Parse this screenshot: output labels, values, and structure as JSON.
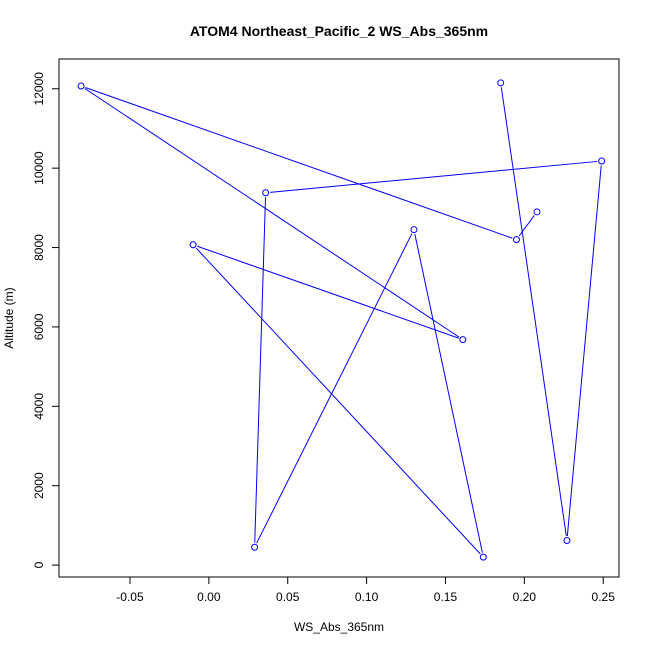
{
  "chart_data": {
    "type": "line",
    "title": "ATOM4 Northeast_Pacific_2 WS_Abs_365nm",
    "xlabel": "WS_Abs_365nm",
    "ylabel": "Altitude (m)",
    "xlim": [
      -0.095,
      0.26
    ],
    "ylim": [
      -300,
      12750
    ],
    "xticks": [
      -0.05,
      0.0,
      0.05,
      0.1,
      0.15,
      0.2,
      0.25
    ],
    "xtick_labels": [
      "-0.05",
      "0.00",
      "0.05",
      "0.10",
      "0.15",
      "0.20",
      "0.25"
    ],
    "yticks": [
      0,
      2000,
      4000,
      6000,
      8000,
      10000,
      12000
    ],
    "ytick_labels": [
      "0",
      "2000",
      "4000",
      "6000",
      "8000",
      "10000",
      "12000"
    ],
    "grid": false,
    "series": [
      {
        "color": "#0000ff",
        "marker": "open-circle",
        "points": [
          {
            "x": 0.185,
            "y": 12150
          },
          {
            "x": 0.227,
            "y": 620
          },
          {
            "x": 0.249,
            "y": 10180
          },
          {
            "x": 0.036,
            "y": 9380
          },
          {
            "x": 0.029,
            "y": 450
          },
          {
            "x": 0.13,
            "y": 8450
          },
          {
            "x": 0.174,
            "y": 200
          },
          {
            "x": -0.01,
            "y": 8070
          },
          {
            "x": 0.161,
            "y": 5680
          },
          {
            "x": -0.081,
            "y": 12070
          },
          {
            "x": 0.195,
            "y": 8200
          },
          {
            "x": 0.208,
            "y": 8900
          }
        ]
      }
    ]
  }
}
